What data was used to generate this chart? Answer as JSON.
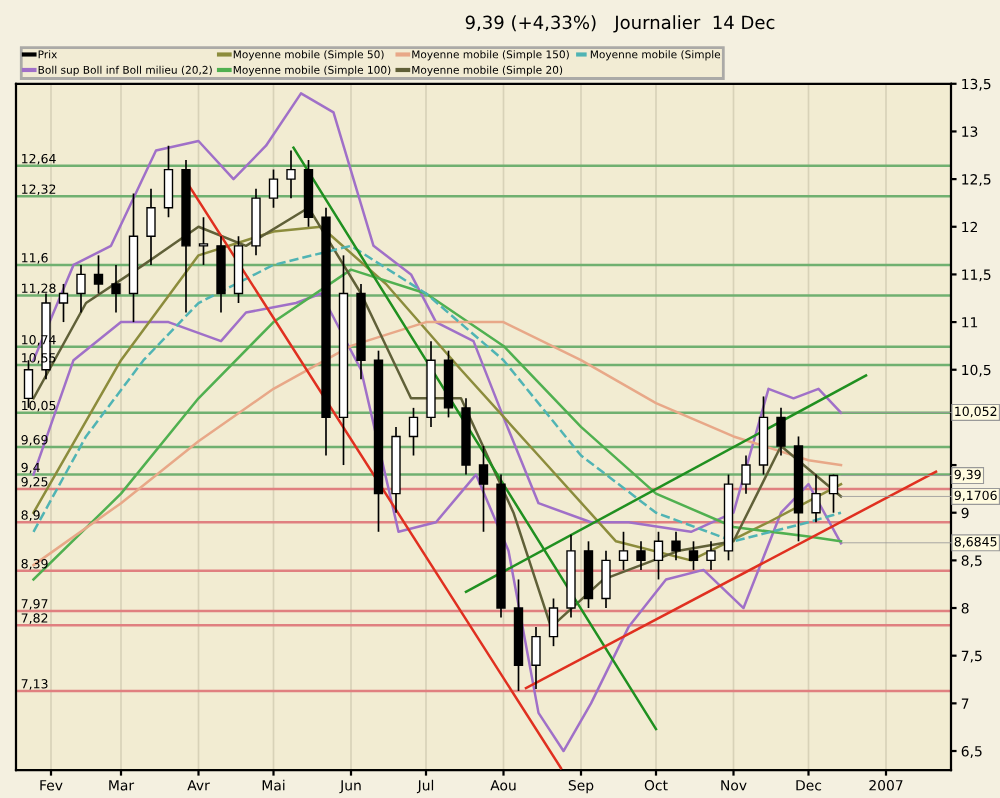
{
  "chart_data": {
    "type": "candlestick",
    "title": "9,39 (+4,33%)   Journalier  14 Dec",
    "series": [
      {
        "name": "Prix",
        "color": "#000000",
        "x": [
          "2006-01-23",
          "2006-01-30",
          "2006-02-06",
          "2006-02-13",
          "2006-02-20",
          "2006-02-27",
          "2006-03-06",
          "2006-03-13",
          "2006-03-20",
          "2006-03-27",
          "2006-04-03",
          "2006-04-10",
          "2006-04-17",
          "2006-04-24",
          "2006-05-01",
          "2006-05-08",
          "2006-05-15",
          "2006-05-22",
          "2006-05-29",
          "2006-06-05",
          "2006-06-12",
          "2006-06-19",
          "2006-06-26",
          "2006-07-03",
          "2006-07-10",
          "2006-07-17",
          "2006-07-24",
          "2006-07-31",
          "2006-08-07",
          "2006-08-14",
          "2006-08-21",
          "2006-08-28",
          "2006-09-04",
          "2006-09-11",
          "2006-09-18",
          "2006-09-25",
          "2006-10-02",
          "2006-10-09",
          "2006-10-16",
          "2006-10-23",
          "2006-10-30",
          "2006-11-06",
          "2006-11-13",
          "2006-11-20",
          "2006-11-27",
          "2006-12-04",
          "2006-12-11"
        ],
        "ohlc": [
          [
            10.2,
            10.6,
            10.1,
            10.5
          ],
          [
            10.5,
            11.3,
            10.4,
            11.2
          ],
          [
            11.2,
            11.4,
            11.0,
            11.3
          ],
          [
            11.3,
            11.6,
            11.1,
            11.5
          ],
          [
            11.5,
            11.7,
            11.3,
            11.4
          ],
          [
            11.4,
            11.6,
            11.1,
            11.3
          ],
          [
            11.3,
            12.35,
            11.0,
            11.9
          ],
          [
            11.9,
            12.4,
            11.6,
            12.2
          ],
          [
            12.2,
            12.85,
            12.1,
            12.6
          ],
          [
            12.6,
            12.7,
            11.1,
            11.8
          ],
          [
            11.8,
            12.1,
            11.6,
            11.8
          ],
          [
            11.8,
            11.9,
            11.1,
            11.3
          ],
          [
            11.3,
            11.9,
            11.2,
            11.8
          ],
          [
            11.8,
            12.4,
            11.7,
            12.3
          ],
          [
            12.3,
            12.6,
            12.2,
            12.5
          ],
          [
            12.5,
            12.8,
            12.3,
            12.6
          ],
          [
            12.6,
            12.7,
            12.0,
            12.1
          ],
          [
            12.1,
            12.2,
            9.6,
            10.0
          ],
          [
            10.0,
            11.7,
            9.5,
            11.3
          ],
          [
            11.3,
            11.4,
            10.4,
            10.6
          ],
          [
            10.6,
            10.7,
            8.8,
            9.2
          ],
          [
            9.2,
            9.9,
            9.0,
            9.8
          ],
          [
            9.8,
            10.1,
            9.6,
            10.0
          ],
          [
            10.0,
            10.8,
            9.9,
            10.6
          ],
          [
            10.6,
            10.7,
            10.0,
            10.1
          ],
          [
            10.1,
            10.2,
            9.4,
            9.5
          ],
          [
            9.5,
            9.7,
            8.8,
            9.3
          ],
          [
            9.3,
            9.4,
            7.9,
            8.0
          ],
          [
            8.0,
            8.3,
            7.13,
            7.4
          ],
          [
            7.4,
            7.8,
            7.15,
            7.7
          ],
          [
            7.7,
            8.1,
            7.6,
            8.0
          ],
          [
            8.0,
            8.77,
            7.9,
            8.6
          ],
          [
            8.6,
            8.7,
            8.0,
            8.1
          ],
          [
            8.1,
            8.6,
            8.0,
            8.5
          ],
          [
            8.5,
            8.8,
            8.4,
            8.6
          ],
          [
            8.6,
            8.7,
            8.4,
            8.5
          ],
          [
            8.5,
            8.8,
            8.3,
            8.7
          ],
          [
            8.7,
            8.8,
            8.5,
            8.6
          ],
          [
            8.6,
            8.7,
            8.4,
            8.5
          ],
          [
            8.5,
            8.7,
            8.4,
            8.6
          ],
          [
            8.6,
            9.4,
            8.5,
            9.3
          ],
          [
            9.3,
            9.6,
            9.2,
            9.5
          ],
          [
            9.5,
            10.22,
            9.4,
            10.0
          ],
          [
            10.0,
            10.1,
            9.6,
            9.7
          ],
          [
            9.7,
            9.8,
            8.7,
            9.0
          ],
          [
            9.0,
            9.4,
            8.9,
            9.2
          ],
          [
            9.2,
            9.4,
            9.0,
            9.39
          ]
        ]
      },
      {
        "name": "Boll sup Boll inf Boll milieu (20,2)",
        "type": "line",
        "color": "#a070c8",
        "x": [
          "2006-01-25",
          "2006-02-10",
          "2006-02-25",
          "2006-03-15",
          "2006-04-01",
          "2006-04-15",
          "2006-04-28",
          "2006-05-12",
          "2006-05-25",
          "2006-06-10",
          "2006-06-25",
          "2006-07-05",
          "2006-07-20",
          "2006-08-01",
          "2006-08-15",
          "2006-09-05",
          "2006-09-20",
          "2006-10-15",
          "2006-11-01",
          "2006-11-15",
          "2006-11-25",
          "2006-12-05",
          "2006-12-14"
        ],
        "values": [
          10.6,
          11.6,
          11.8,
          12.8,
          12.9,
          12.5,
          12.85,
          13.4,
          13.2,
          11.8,
          11.5,
          11.0,
          10.8,
          10.0,
          9.1,
          8.9,
          8.9,
          8.8,
          9.0,
          10.3,
          10.2,
          10.3,
          10.05
        ]
      },
      {
        "type": "line",
        "color": "#a070c8",
        "x": [
          "2006-01-25",
          "2006-02-10",
          "2006-03-01",
          "2006-03-20",
          "2006-04-10",
          "2006-04-20",
          "2006-05-10",
          "2006-05-20",
          "2006-06-05",
          "2006-06-20",
          "2006-07-05",
          "2006-07-21",
          "2006-08-03",
          "2006-08-15",
          "2006-08-25",
          "2006-09-05",
          "2006-09-20",
          "2006-10-05",
          "2006-10-20",
          "2006-11-05",
          "2006-11-20",
          "2006-12-01",
          "2006-12-14"
        ],
        "values": [
          9.4,
          10.6,
          11.0,
          11.0,
          10.8,
          11.1,
          11.2,
          11.3,
          10.5,
          8.8,
          8.9,
          9.4,
          8.6,
          6.9,
          6.5,
          7.0,
          7.8,
          8.3,
          8.4,
          8.0,
          9.0,
          9.3,
          8.68
        ]
      },
      {
        "name": "Moyenne mobile (Simple 50)",
        "type": "line",
        "color": "#8c8c3c",
        "x": [
          "2006-01-25",
          "2006-03-01",
          "2006-04-01",
          "2006-05-01",
          "2006-05-20",
          "2006-06-15",
          "2006-07-15",
          "2006-08-15",
          "2006-09-15",
          "2006-10-15",
          "2006-11-15",
          "2006-12-14"
        ],
        "values": [
          9.0,
          10.6,
          11.7,
          11.95,
          12.0,
          11.4,
          10.5,
          9.6,
          8.7,
          8.5,
          8.9,
          9.3
        ]
      },
      {
        "name": "Moyenne mobile (Simple 100)",
        "type": "line",
        "color": "#50b050",
        "x": [
          "2006-01-25",
          "2006-03-01",
          "2006-04-01",
          "2006-05-01",
          "2006-06-01",
          "2006-07-01",
          "2006-08-01",
          "2006-09-01",
          "2006-10-01",
          "2006-11-01",
          "2006-12-01",
          "2006-12-14"
        ],
        "values": [
          8.3,
          9.2,
          10.2,
          11.0,
          11.55,
          11.3,
          10.75,
          9.9,
          9.2,
          8.85,
          8.75,
          8.7
        ]
      },
      {
        "name": "Moyenne mobile (Simple 150)",
        "type": "line",
        "color": "#e8a888",
        "x": [
          "2006-01-25",
          "2006-03-01",
          "2006-04-01",
          "2006-05-01",
          "2006-06-01",
          "2006-07-01",
          "2006-08-01",
          "2006-09-01",
          "2006-10-01",
          "2006-11-01",
          "2006-12-01",
          "2006-12-14"
        ],
        "values": [
          8.45,
          9.1,
          9.75,
          10.3,
          10.75,
          11.0,
          11.0,
          10.6,
          10.15,
          9.8,
          9.55,
          9.5
        ]
      },
      {
        "name": "Moyenne mobile (Simple 20)",
        "type": "line",
        "color": "#606038",
        "x": [
          "2006-01-25",
          "2006-02-15",
          "2006-03-10",
          "2006-04-01",
          "2006-04-20",
          "2006-05-15",
          "2006-06-05",
          "2006-06-25",
          "2006-07-15",
          "2006-08-05",
          "2006-08-20",
          "2006-09-10",
          "2006-10-10",
          "2006-11-01",
          "2006-11-20",
          "2006-12-14"
        ],
        "values": [
          10.2,
          11.2,
          11.6,
          12.0,
          11.8,
          12.2,
          11.3,
          10.2,
          10.2,
          9.0,
          7.8,
          8.3,
          8.6,
          8.7,
          9.7,
          9.17
        ]
      },
      {
        "name": "Moyenne mobile (Simple",
        "type": "line",
        "color": "#50b4b4",
        "line_style": "dashed",
        "x": [
          "2006-01-25",
          "2006-02-15",
          "2006-03-10",
          "2006-04-01",
          "2006-05-01",
          "2006-06-01",
          "2006-07-01",
          "2006-08-01",
          "2006-09-01",
          "2006-10-01",
          "2006-11-01",
          "2006-12-01",
          "2006-12-14"
        ],
        "values": [
          8.8,
          9.8,
          10.6,
          11.2,
          11.6,
          11.8,
          11.3,
          10.6,
          9.6,
          9.0,
          8.7,
          8.9,
          9.0
        ]
      },
      {
        "type": "line",
        "color": "#e03020",
        "x": [
          "2006-03-28",
          "2006-08-24"
        ],
        "values": [
          12.44,
          6.32
        ]
      },
      {
        "type": "line",
        "color": "#209020",
        "x": [
          "2006-05-09",
          "2006-10-01"
        ],
        "values": [
          12.83,
          6.73
        ]
      },
      {
        "type": "line",
        "color": "#e03020",
        "x": [
          "2006-08-10",
          "2007-01-21"
        ],
        "values": [
          7.16,
          9.43
        ]
      },
      {
        "type": "line",
        "color": "#209020",
        "x": [
          "2006-07-17",
          "2006-12-24"
        ],
        "values": [
          8.17,
          10.44
        ]
      }
    ],
    "ref_lines": [
      {
        "axis": "y",
        "value": 12.64,
        "label": "12,64",
        "color": "#70b070"
      },
      {
        "axis": "y",
        "value": 12.32,
        "label": "12,32",
        "color": "#70b070"
      },
      {
        "axis": "y",
        "value": 11.6,
        "label": "11,6",
        "color": "#70b070"
      },
      {
        "axis": "y",
        "value": 11.28,
        "label": "11,28",
        "color": "#70b070"
      },
      {
        "axis": "y",
        "value": 10.74,
        "label": "10,74",
        "color": "#70b070"
      },
      {
        "axis": "y",
        "value": 10.55,
        "label": "10,55",
        "color": "#70b070"
      },
      {
        "axis": "y",
        "value": 10.05,
        "label": "10,05",
        "color": "#70b070"
      },
      {
        "axis": "y",
        "value": 9.69,
        "label": "9,69",
        "color": "#70b070"
      },
      {
        "axis": "y",
        "value": 9.4,
        "label": "9,4",
        "color": "#70b070"
      },
      {
        "axis": "y",
        "value": 9.25,
        "label": "9,25",
        "color": "#e08080"
      },
      {
        "axis": "y",
        "value": 8.9,
        "label": "8,9",
        "color": "#e08080"
      },
      {
        "axis": "y",
        "value": 8.39,
        "label": "8,39",
        "color": "#e08080"
      },
      {
        "axis": "y",
        "value": 7.97,
        "label": "7,97",
        "color": "#e08080"
      },
      {
        "axis": "y",
        "value": 7.82,
        "label": "7,82",
        "color": "#e08080"
      },
      {
        "axis": "y",
        "value": 7.13,
        "label": "7,13",
        "color": "#e08080"
      }
    ],
    "annotations": [
      {
        "text": "10,052",
        "x": "2006-12-14",
        "y": 10.052
      },
      {
        "text": "9,39",
        "x": "2006-12-14",
        "y": 9.39
      },
      {
        "text": "9,1706",
        "x": "2006-12-14",
        "y": 9.1706
      },
      {
        "text": "8,6845",
        "x": "2006-12-14",
        "y": 8.6845
      }
    ],
    "xlim": [
      "2006-01-18",
      "2007-01-27"
    ],
    "xticks": [
      {
        "value": "2006-02-01",
        "label": "Fev"
      },
      {
        "value": "2006-03-01",
        "label": "Mar"
      },
      {
        "value": "2006-04-01",
        "label": "Avr"
      },
      {
        "value": "2006-05-01",
        "label": "Mai"
      },
      {
        "value": "2006-06-01",
        "label": "Jun"
      },
      {
        "value": "2006-07-01",
        "label": "Jul"
      },
      {
        "value": "2006-08-01",
        "label": "Aou"
      },
      {
        "value": "2006-09-01",
        "label": "Sep"
      },
      {
        "value": "2006-10-01",
        "label": "Oct"
      },
      {
        "value": "2006-11-01",
        "label": "Nov"
      },
      {
        "value": "2006-12-01",
        "label": "Dec"
      },
      {
        "value": "2007-01-01",
        "label": "2007"
      }
    ],
    "ylim": [
      6.3,
      13.5
    ],
    "yticks": [
      {
        "value": 6.5,
        "label": "6,5"
      },
      7,
      {
        "value": 7.5,
        "label": "7,5"
      },
      8,
      {
        "value": 8.5,
        "label": "8,5"
      },
      9,
      {
        "value": 9.5,
        "label": null
      },
      {
        "value": 10,
        "label": null
      },
      {
        "value": 10.5,
        "label": "10,5"
      },
      11,
      {
        "value": 11.5,
        "label": "11,5"
      },
      12,
      {
        "value": 12.5,
        "label": "12,5"
      },
      13,
      {
        "value": 13.5,
        "label": "13,5"
      }
    ],
    "grid": "x",
    "legend": "top"
  }
}
